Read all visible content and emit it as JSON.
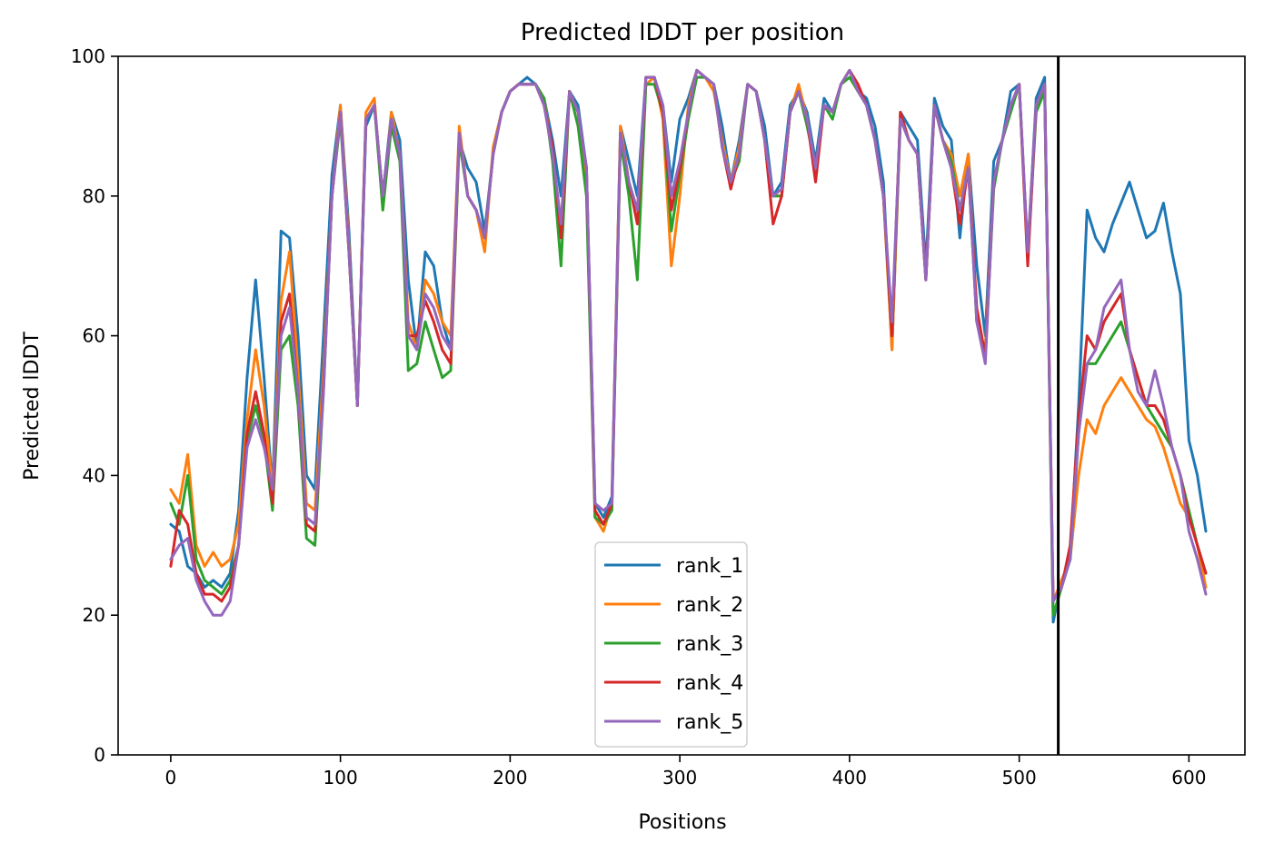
{
  "chart_data": {
    "type": "line",
    "title": "Predicted lDDT per position",
    "xlabel": "Positions",
    "ylabel": "Predicted lDDT",
    "xlim": [
      -31,
      633
    ],
    "ylim": [
      0,
      100
    ],
    "xticks": [
      0,
      100,
      200,
      300,
      400,
      500,
      600
    ],
    "yticks": [
      0,
      20,
      40,
      60,
      80,
      100
    ],
    "grid": false,
    "legend_position": "lower center",
    "chain_break": 523,
    "x_step": 5,
    "x_start": 0,
    "series": [
      {
        "name": "rank_1",
        "color": "#1f77b4",
        "values": [
          33,
          32,
          27,
          26,
          24,
          25,
          24,
          26,
          35,
          54,
          68,
          54,
          38,
          75,
          74,
          60,
          40,
          38,
          60,
          83,
          93,
          75,
          50,
          90,
          93,
          80,
          92,
          88,
          68,
          58,
          72,
          70,
          62,
          58,
          88,
          84,
          82,
          75,
          86,
          92,
          95,
          96,
          97,
          96,
          94,
          88,
          80,
          95,
          93,
          84,
          36,
          34,
          37,
          90,
          85,
          80,
          97,
          97,
          93,
          82,
          91,
          94,
          98,
          97,
          96,
          90,
          82,
          88,
          96,
          95,
          90,
          80,
          82,
          93,
          95,
          92,
          85,
          94,
          92,
          96,
          98,
          95,
          94,
          90,
          82,
          58,
          92,
          90,
          88,
          70,
          94,
          90,
          88,
          74,
          86,
          70,
          60,
          85,
          88,
          95,
          96,
          72,
          94,
          97,
          19,
          25,
          28,
          50,
          78,
          74,
          72,
          76,
          79,
          82,
          78,
          74,
          75,
          79,
          72,
          66,
          45,
          40,
          32
        ]
      },
      {
        "name": "rank_2",
        "color": "#ff7f0e",
        "values": [
          38,
          36,
          43,
          30,
          27,
          29,
          27,
          28,
          33,
          48,
          58,
          50,
          38,
          65,
          72,
          55,
          36,
          35,
          55,
          80,
          93,
          73,
          50,
          92,
          94,
          78,
          92,
          86,
          62,
          58,
          68,
          66,
          62,
          60,
          90,
          80,
          78,
          72,
          87,
          92,
          95,
          96,
          96,
          96,
          94,
          86,
          76,
          95,
          92,
          82,
          34,
          32,
          36,
          90,
          82,
          78,
          96,
          97,
          91,
          70,
          80,
          93,
          98,
          97,
          95,
          88,
          82,
          87,
          96,
          95,
          88,
          80,
          80,
          92,
          96,
          91,
          84,
          93,
          92,
          96,
          98,
          95,
          93,
          88,
          80,
          58,
          91,
          88,
          86,
          68,
          93,
          88,
          86,
          80,
          86,
          62,
          58,
          82,
          88,
          93,
          96,
          72,
          93,
          96,
          22,
          25,
          28,
          40,
          48,
          46,
          50,
          52,
          54,
          52,
          50,
          48,
          47,
          44,
          40,
          36,
          34,
          30,
          24
        ]
      },
      {
        "name": "rank_3",
        "color": "#2ca02c",
        "values": [
          36,
          33,
          40,
          28,
          25,
          24,
          23,
          25,
          30,
          45,
          50,
          45,
          35,
          58,
          60,
          50,
          31,
          30,
          52,
          80,
          91,
          72,
          50,
          91,
          93,
          78,
          90,
          85,
          55,
          56,
          62,
          58,
          54,
          55,
          88,
          80,
          78,
          74,
          86,
          92,
          95,
          96,
          96,
          96,
          94,
          85,
          70,
          95,
          90,
          80,
          34,
          33,
          35,
          88,
          80,
          68,
          96,
          96,
          92,
          75,
          83,
          91,
          97,
          97,
          96,
          87,
          82,
          85,
          96,
          95,
          88,
          80,
          80,
          92,
          95,
          90,
          84,
          93,
          91,
          96,
          97,
          95,
          93,
          88,
          80,
          60,
          91,
          88,
          86,
          68,
          93,
          88,
          85,
          78,
          84,
          62,
          57,
          81,
          88,
          92,
          96,
          71,
          92,
          95,
          20,
          24,
          28,
          46,
          56,
          56,
          58,
          60,
          62,
          58,
          54,
          50,
          48,
          46,
          44,
          40,
          35,
          30,
          26
        ]
      },
      {
        "name": "rank_4",
        "color": "#d62728",
        "values": [
          27,
          35,
          33,
          26,
          23,
          23,
          22,
          24,
          30,
          46,
          52,
          46,
          36,
          62,
          66,
          52,
          33,
          32,
          53,
          80,
          92,
          72,
          50,
          91,
          93,
          80,
          91,
          86,
          60,
          60,
          65,
          62,
          58,
          56,
          89,
          80,
          78,
          74,
          86,
          92,
          95,
          96,
          96,
          96,
          93,
          87,
          74,
          95,
          92,
          84,
          35,
          33,
          36,
          89,
          82,
          76,
          97,
          97,
          92,
          78,
          84,
          92,
          98,
          97,
          96,
          87,
          81,
          86,
          96,
          95,
          88,
          76,
          80,
          92,
          95,
          91,
          82,
          93,
          92,
          96,
          98,
          96,
          93,
          88,
          80,
          60,
          92,
          88,
          86,
          68,
          93,
          88,
          84,
          76,
          84,
          64,
          57,
          82,
          88,
          93,
          96,
          70,
          93,
          96,
          22,
          24,
          30,
          48,
          60,
          58,
          62,
          64,
          66,
          58,
          54,
          50,
          50,
          48,
          44,
          40,
          34,
          30,
          26
        ]
      },
      {
        "name": "rank_5",
        "color": "#9467bd",
        "values": [
          28,
          30,
          31,
          25,
          22,
          20,
          20,
          22,
          30,
          44,
          48,
          44,
          38,
          60,
          64,
          52,
          34,
          33,
          52,
          80,
          92,
          72,
          50,
          91,
          93,
          80,
          91,
          86,
          60,
          58,
          66,
          64,
          60,
          58,
          89,
          80,
          78,
          74,
          86,
          92,
          95,
          96,
          96,
          96,
          93,
          86,
          76,
          95,
          92,
          84,
          36,
          35,
          36,
          89,
          82,
          78,
          97,
          97,
          93,
          80,
          85,
          92,
          98,
          97,
          96,
          87,
          82,
          86,
          96,
          95,
          88,
          80,
          81,
          92,
          95,
          91,
          84,
          93,
          92,
          96,
          98,
          95,
          93,
          88,
          80,
          62,
          91,
          88,
          86,
          68,
          93,
          88,
          84,
          78,
          84,
          62,
          56,
          82,
          88,
          93,
          96,
          72,
          93,
          96,
          22,
          24,
          28,
          46,
          56,
          58,
          64,
          66,
          68,
          58,
          52,
          50,
          55,
          50,
          44,
          40,
          32,
          28,
          23
        ]
      }
    ]
  }
}
